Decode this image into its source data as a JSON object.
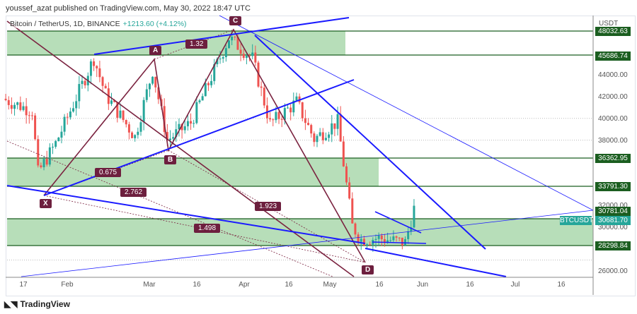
{
  "header": {
    "published": "youssef_azat published on TradingView.com, May 30, 2022 18:47 UTC"
  },
  "symbol": {
    "title": "Bitcoin / TetherUS, 1D, BINANCE",
    "change": "+1213.60 (+4.12%)"
  },
  "price_axis": {
    "unit": "USDT",
    "ticks": [
      "44000.00",
      "42000.00",
      "40000.00",
      "38000.00",
      "32000.00",
      "30000.00",
      "26000.00"
    ],
    "levels": [
      "48032.63",
      "45686.74",
      "36362.95",
      "33791.30",
      "30781.04",
      "28298.84"
    ],
    "current": {
      "label": "BTCUSDT",
      "price": "30681.70",
      "color": "#26a69a"
    }
  },
  "time_axis": [
    "17",
    "Feb",
    "Mar",
    "16",
    "Apr",
    "16",
    "May",
    "16",
    "Jun",
    "16",
    "Jul",
    "16"
  ],
  "pattern": {
    "points": [
      "X",
      "A",
      "B",
      "C",
      "D"
    ],
    "ratios": [
      "0.675",
      "2.762",
      "1.32",
      "1.923",
      "1.498"
    ]
  },
  "colors": {
    "up": "#26a69a",
    "down": "#ef5350",
    "zone": "#a5d6a7",
    "level": "#1b5e20",
    "trend": "#1a1aff",
    "harmonic": "#7b2340"
  },
  "chart_data": {
    "type": "candlestick",
    "title": "Bitcoin / TetherUS, 1D, BINANCE",
    "ylim": [
      25000,
      49000
    ],
    "approx_closes": [
      [
        "2022-01-10",
        41800
      ],
      [
        "2022-01-20",
        40700
      ],
      [
        "2022-01-22",
        35000
      ],
      [
        "2022-01-28",
        37700
      ],
      [
        "2022-02-10",
        45500
      ],
      [
        "2022-02-14",
        42200
      ],
      [
        "2022-02-24",
        38300
      ],
      [
        "2022-03-02",
        44400
      ],
      [
        "2022-03-07",
        38000
      ],
      [
        "2022-03-15",
        39600
      ],
      [
        "2022-03-28",
        47400
      ],
      [
        "2022-04-05",
        45500
      ],
      [
        "2022-04-11",
        39500
      ],
      [
        "2022-04-20",
        41500
      ],
      [
        "2022-04-26",
        38100
      ],
      [
        "2022-05-04",
        39700
      ],
      [
        "2022-05-09",
        30100
      ],
      [
        "2022-05-12",
        28900
      ],
      [
        "2022-05-18",
        29000
      ],
      [
        "2022-05-27",
        28600
      ],
      [
        "2022-05-30",
        31700
      ]
    ]
  },
  "footer": {
    "brand": "TradingView"
  }
}
